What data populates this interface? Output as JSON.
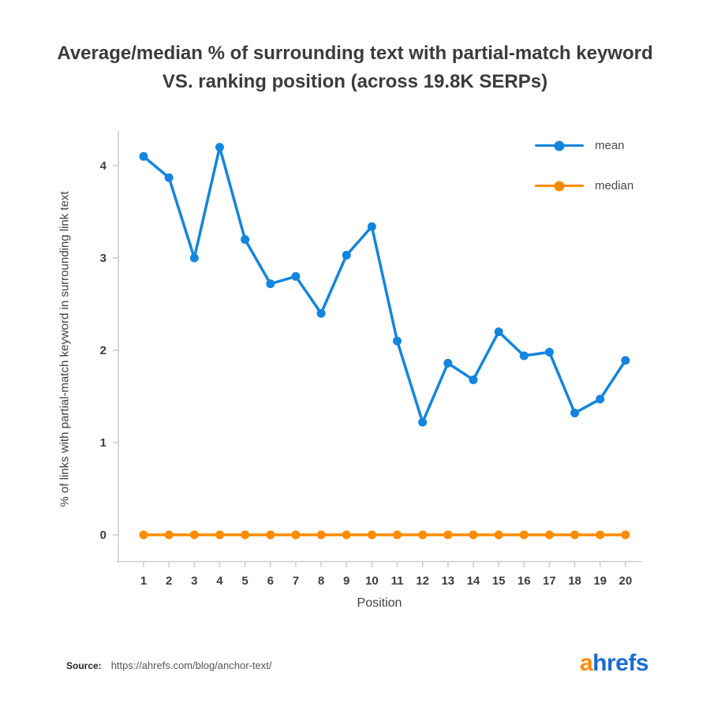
{
  "title": "Average/median % of surrounding text with partial-match keyword VS. ranking position (across 19.8K SERPs)",
  "chart_data": {
    "type": "line",
    "title": "Average/median % of surrounding text with partial-match keyword VS. ranking position (across 19.8K SERPs)",
    "xlabel": "Position",
    "ylabel": "% of links with partial-match keyword in surrounding link text",
    "x": [
      1,
      2,
      3,
      4,
      5,
      6,
      7,
      8,
      9,
      10,
      11,
      12,
      13,
      14,
      15,
      16,
      17,
      18,
      19,
      20
    ],
    "yticks": [
      0,
      1,
      2,
      3,
      4
    ],
    "ylim": [
      0,
      4.4
    ],
    "grid": false,
    "legend_position": "top-right",
    "axis_color": "#c9ced3",
    "tick_color": "#3d3d3d",
    "series": [
      {
        "name": "mean",
        "color": "#1285e0",
        "values": [
          4.1,
          3.87,
          3.0,
          4.2,
          3.2,
          2.72,
          2.8,
          2.4,
          3.03,
          3.34,
          2.1,
          1.22,
          1.86,
          1.68,
          2.2,
          1.94,
          1.98,
          1.32,
          1.47,
          1.89
        ]
      },
      {
        "name": "median",
        "color": "#ff8b00",
        "values": [
          0,
          0,
          0,
          0,
          0,
          0,
          0,
          0,
          0,
          0,
          0,
          0,
          0,
          0,
          0,
          0,
          0,
          0,
          0,
          0
        ]
      }
    ]
  },
  "footer": {
    "source_label": "Source:",
    "source_url": "https://ahrefs.com/blog/anchor-text/",
    "logo": {
      "part1": "a",
      "part2": "hrefs",
      "color_a": "#ff8800",
      "color_hrefs": "#1b6ad4"
    }
  }
}
